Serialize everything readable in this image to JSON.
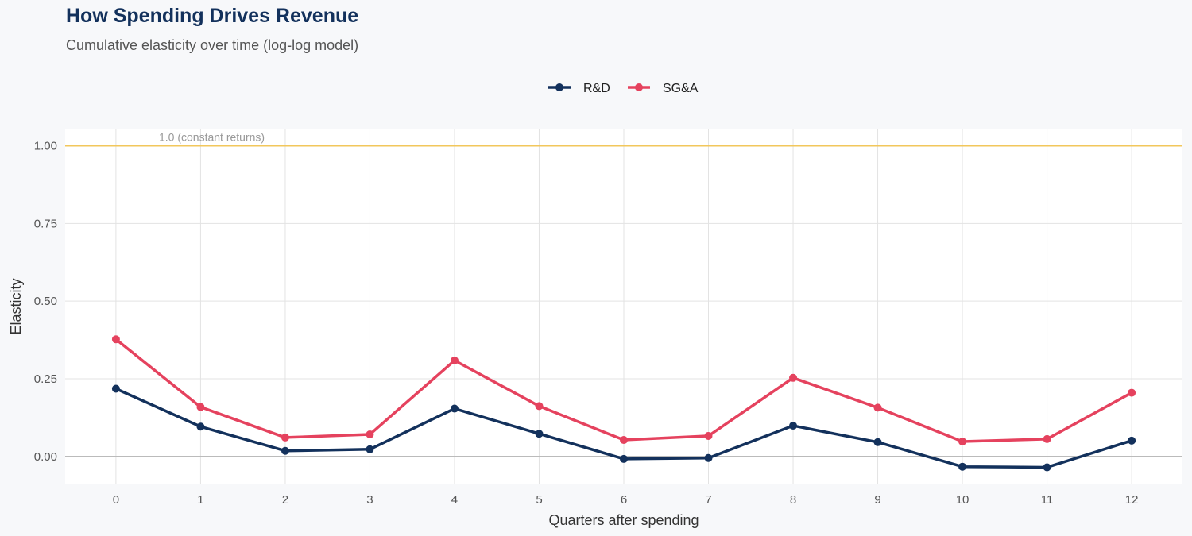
{
  "chart_data": {
    "type": "line",
    "title": "How Spending Drives Revenue",
    "subtitle": "Cumulative elasticity over time (log-log model)",
    "xlabel": "Quarters after spending",
    "ylabel": "Elasticity",
    "x": [
      0,
      1,
      2,
      3,
      4,
      5,
      6,
      7,
      8,
      9,
      10,
      11,
      12
    ],
    "xlim": [
      -0.6,
      12.6
    ],
    "ylim": [
      -0.09,
      1.055
    ],
    "yticks": [
      "0.00",
      "0.25",
      "0.50",
      "0.75",
      "1.00"
    ],
    "yticks_values": [
      0,
      0.25,
      0.5,
      0.75,
      1.0
    ],
    "grid": true,
    "legend_position": "top",
    "reference_line": {
      "y": 1.0,
      "label": "1.0 (constant returns)",
      "color": "#f2c75c"
    },
    "series": [
      {
        "name": "R&D",
        "color": "#13315c",
        "values": [
          0.218,
          0.096,
          0.018,
          0.023,
          0.154,
          0.073,
          -0.008,
          -0.005,
          0.099,
          0.046,
          -0.033,
          -0.035,
          0.051
        ]
      },
      {
        "name": "SG&A",
        "color": "#e5425e",
        "values": [
          0.377,
          0.159,
          0.061,
          0.071,
          0.309,
          0.162,
          0.053,
          0.066,
          0.253,
          0.157,
          0.048,
          0.056,
          0.205
        ]
      }
    ]
  }
}
